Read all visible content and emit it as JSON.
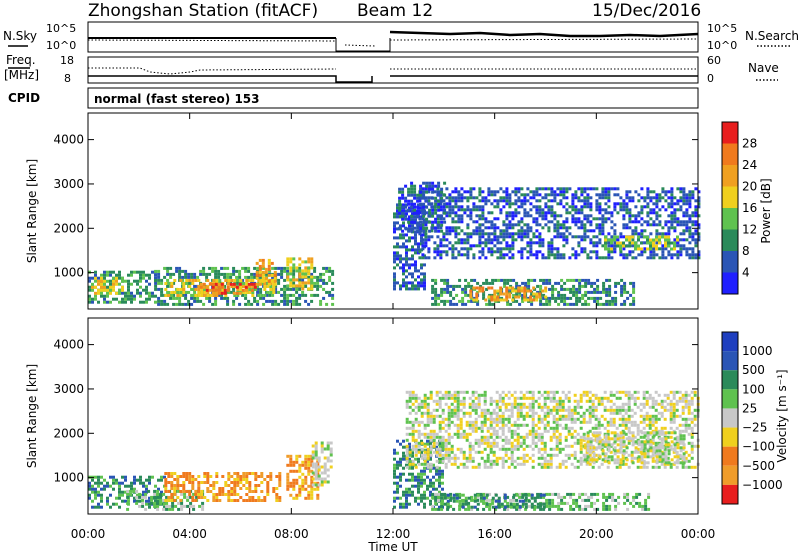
{
  "header": {
    "station": "Zhongshan Station (fitACF)",
    "beam": "Beam 12",
    "date": "15/Dec/2016"
  },
  "status_panels": {
    "nsky": {
      "left_label": "N.Sky",
      "left_ticks": [
        "10^5",
        "10^0"
      ],
      "right_label": "N.Search",
      "right_ticks": [
        "10^5",
        "10^0"
      ]
    },
    "freq": {
      "left_label_1": "Freq.",
      "left_label_2": "[MHz]",
      "left_ticks": [
        "18",
        "8"
      ],
      "right_label": "Nave",
      "right_ticks": [
        "60",
        "0"
      ]
    },
    "cpid": {
      "label": "CPID",
      "text": "normal (fast stereo) 153"
    }
  },
  "axes": {
    "ylabel": "Slant Range [km]",
    "y_ticks": [
      "1000",
      "2000",
      "3000",
      "4000"
    ],
    "x_ticks": [
      "00:00",
      "04:00",
      "08:00",
      "12:00",
      "16:00",
      "20:00",
      "00:00"
    ],
    "xlabel": "Time UT"
  },
  "colorbars": {
    "power": {
      "label": "Power [dB]",
      "ticks": [
        "4",
        "8",
        "12",
        "16",
        "20",
        "24",
        "28"
      ],
      "colors": [
        "#1f1fff",
        "#2a55b5",
        "#2a8a5a",
        "#5fc24f",
        "#f0d01e",
        "#f0a020",
        "#f07a1e",
        "#e81e1e"
      ]
    },
    "velocity": {
      "label": "Velocity [m s⁻¹]",
      "ticks": [
        "1000",
        "500",
        "100",
        "25",
        "−25",
        "−100",
        "−500",
        "−1000"
      ],
      "colors": [
        "#1f3fbf",
        "#2a55b5",
        "#2a8a5a",
        "#5fc24f",
        "#c8c8c8",
        "#f0d01e",
        "#f07a1e",
        "#f09c2a",
        "#e81e1e"
      ]
    }
  },
  "chart_data": [
    {
      "type": "heatmap",
      "panel": "power",
      "x_range_hours": [
        0,
        24
      ],
      "y_range_km": [
        180,
        4600
      ],
      "blobs": [
        {
          "t0": 0.0,
          "t1": 2.6,
          "r0": 300,
          "r1": 1000,
          "level": 2
        },
        {
          "t0": 0.0,
          "t1": 1.4,
          "r0": 500,
          "r1": 900,
          "level": 4
        },
        {
          "t0": 2.6,
          "t1": 9.6,
          "r0": 250,
          "r1": 1100,
          "level": 2
        },
        {
          "t0": 3.0,
          "t1": 7.3,
          "r0": 450,
          "r1": 850,
          "level": 4
        },
        {
          "t0": 4.4,
          "t1": 6.6,
          "r0": 500,
          "r1": 750,
          "level": 6
        },
        {
          "t0": 6.6,
          "t1": 7.4,
          "r0": 700,
          "r1": 1300,
          "level": 5
        },
        {
          "t0": 7.8,
          "t1": 8.8,
          "r0": 600,
          "r1": 1300,
          "level": 4
        },
        {
          "t0": 12.0,
          "t1": 13.2,
          "r0": 600,
          "r1": 2500,
          "level": 1
        },
        {
          "t0": 13.5,
          "t1": 21.5,
          "r0": 250,
          "r1": 800,
          "level": 2
        },
        {
          "t0": 15.0,
          "t1": 18.0,
          "r0": 350,
          "r1": 650,
          "level": 5
        },
        {
          "t0": 13.0,
          "t1": 24.0,
          "r0": 1300,
          "r1": 2900,
          "level": 1
        },
        {
          "t0": 20.3,
          "t1": 23.2,
          "r0": 1500,
          "r1": 1800,
          "level": 3
        },
        {
          "t0": 12.2,
          "t1": 14.0,
          "r0": 1900,
          "r1": 3000,
          "level": 1
        }
      ]
    },
    {
      "type": "heatmap",
      "panel": "velocity",
      "x_range_hours": [
        0,
        24
      ],
      "y_range_km": [
        180,
        4600
      ],
      "blobs": [
        {
          "t0": 0.0,
          "t1": 3.0,
          "r0": 300,
          "r1": 1000,
          "level": 2
        },
        {
          "t0": 1.5,
          "t1": 4.5,
          "r0": 250,
          "r1": 700,
          "level": 3
        },
        {
          "t0": 3.0,
          "t1": 7.5,
          "r0": 450,
          "r1": 1100,
          "level": 6
        },
        {
          "t0": 7.8,
          "t1": 9.0,
          "r0": 500,
          "r1": 1500,
          "level": 6
        },
        {
          "t0": 8.8,
          "t1": 9.6,
          "r0": 800,
          "r1": 1800,
          "level": 4
        },
        {
          "t0": 12.0,
          "t1": 14.0,
          "r0": 300,
          "r1": 1800,
          "level": 2
        },
        {
          "t0": 13.5,
          "t1": 22.0,
          "r0": 250,
          "r1": 650,
          "level": 3
        },
        {
          "t0": 14.0,
          "t1": 18.0,
          "r0": 300,
          "r1": 600,
          "level": 2
        },
        {
          "t0": 12.5,
          "t1": 24.0,
          "r0": 1200,
          "r1": 2900,
          "level": 4
        },
        {
          "t0": 19.5,
          "t1": 23.5,
          "r0": 1300,
          "r1": 2000,
          "level": 4
        }
      ]
    }
  ]
}
